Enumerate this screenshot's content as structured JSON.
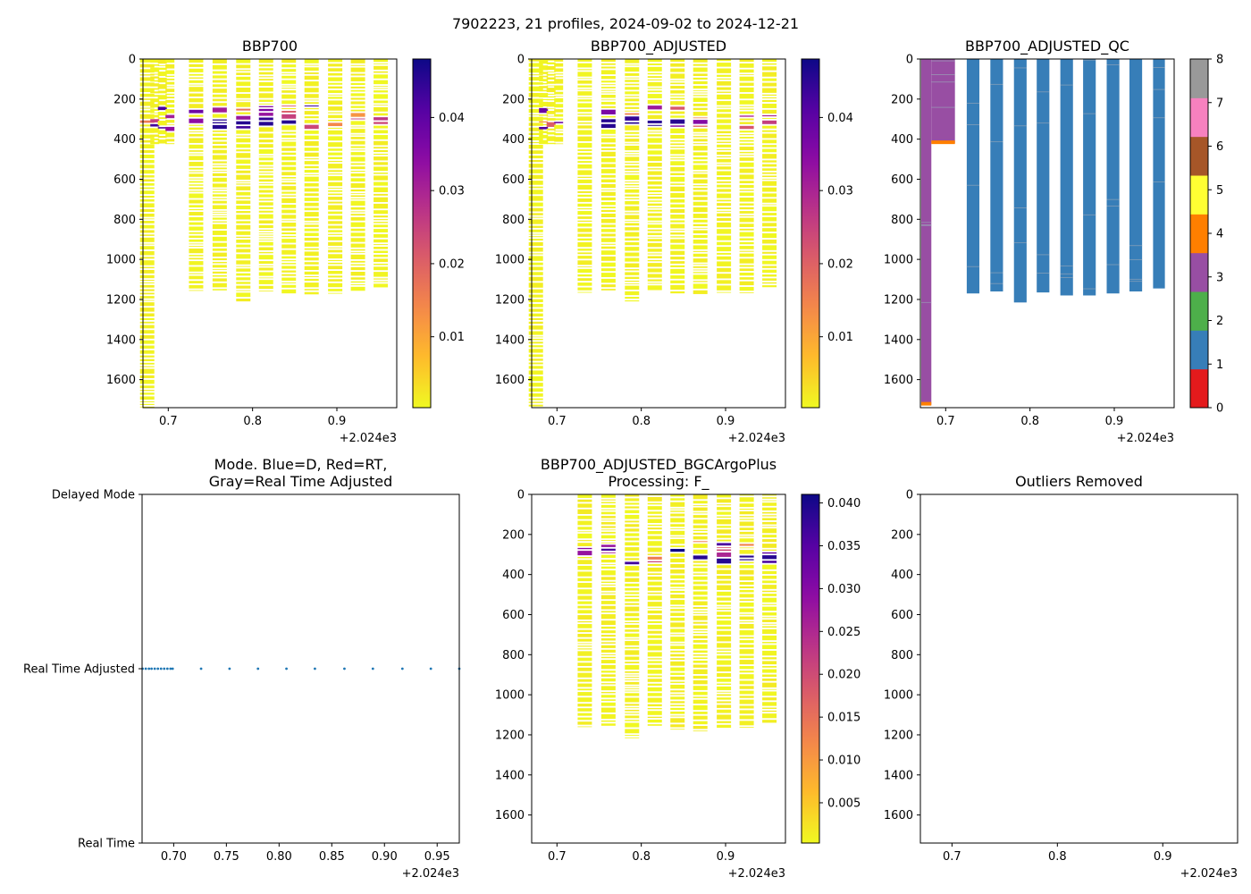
{
  "figure": {
    "suptitle": "7902223, 21 profiles, 2024-09-02 to 2024-12-21",
    "x_offset_label": "+2.024e3"
  },
  "chart_data": [
    {
      "id": "bbp700",
      "type": "heatmap",
      "title": "BBP700",
      "xlim": [
        0.67,
        0.971
      ],
      "ylim": [
        1740,
        0
      ],
      "xticks": [
        "0.7",
        "0.8",
        "0.9"
      ],
      "xtick_values": [
        0.7,
        0.8,
        0.9
      ],
      "yticks": [
        "0",
        "200",
        "400",
        "600",
        "800",
        "1000",
        "1200",
        "1400",
        "1600"
      ],
      "ytick_values": [
        0,
        200,
        400,
        600,
        800,
        1000,
        1200,
        1400,
        1600
      ],
      "profiles_x": [
        0.675,
        0.684,
        0.693,
        0.702,
        0.733,
        0.761,
        0.789,
        0.816,
        0.843,
        0.87,
        0.898,
        0.925,
        0.952
      ],
      "profiles_max_depth": [
        1740,
        430,
        430,
        430,
        1165,
        1160,
        1215,
        1160,
        1175,
        1180,
        1170,
        1165,
        1145
      ],
      "colorbar": {
        "cmap": "plasma_r",
        "range": [
          0.0003,
          0.048
        ],
        "ticks": [
          "0.01",
          "0.02",
          "0.03",
          "0.04"
        ],
        "tick_values": [
          0.01,
          0.02,
          0.03,
          0.04
        ]
      }
    },
    {
      "id": "bbp700-adjusted",
      "type": "heatmap",
      "title": "BBP700_ADJUSTED",
      "xlim": [
        0.67,
        0.971
      ],
      "ylim": [
        1740,
        0
      ],
      "xticks": [
        "0.7",
        "0.8",
        "0.9"
      ],
      "xtick_values": [
        0.7,
        0.8,
        0.9
      ],
      "yticks": [
        "0",
        "200",
        "400",
        "600",
        "800",
        "1000",
        "1200",
        "1400",
        "1600"
      ],
      "ytick_values": [
        0,
        200,
        400,
        600,
        800,
        1000,
        1200,
        1400,
        1600
      ],
      "profiles_x": [
        0.675,
        0.684,
        0.693,
        0.702,
        0.733,
        0.761,
        0.789,
        0.816,
        0.843,
        0.87,
        0.898,
        0.925,
        0.952
      ],
      "profiles_max_depth": [
        1740,
        430,
        430,
        430,
        1165,
        1160,
        1215,
        1160,
        1175,
        1180,
        1170,
        1165,
        1145
      ],
      "colorbar": {
        "cmap": "plasma_r",
        "range": [
          0.0003,
          0.048
        ],
        "ticks": [
          "0.01",
          "0.02",
          "0.03",
          "0.04"
        ],
        "tick_values": [
          0.01,
          0.02,
          0.03,
          0.04
        ]
      }
    },
    {
      "id": "bbp700-adjusted-qc",
      "type": "heatmap",
      "title": "BBP700_ADJUSTED_QC",
      "xlim": [
        0.67,
        0.971
      ],
      "ylim": [
        1740,
        0
      ],
      "xticks": [
        "0.7",
        "0.8",
        "0.9"
      ],
      "xtick_values": [
        0.7,
        0.8,
        0.9
      ],
      "yticks": [
        "0",
        "200",
        "400",
        "600",
        "800",
        "1000",
        "1200",
        "1400",
        "1600"
      ],
      "ytick_values": [
        0,
        200,
        400,
        600,
        800,
        1000,
        1200,
        1400,
        1600
      ],
      "qc_profiles": [
        {
          "x0": 0.671,
          "x1": 0.683,
          "depth": 1725,
          "flag": 3,
          "bottom_flag": 4
        },
        {
          "x0": 0.683,
          "x1": 0.711,
          "depth": 420,
          "flag": 3,
          "bottom_flag": 4
        },
        {
          "x0": 0.725,
          "x1": 0.74,
          "depth": 1170,
          "flag": 1
        },
        {
          "x0": 0.753,
          "x1": 0.768,
          "depth": 1160,
          "flag": 1
        },
        {
          "x0": 0.781,
          "x1": 0.796,
          "depth": 1215,
          "flag": 1
        },
        {
          "x0": 0.808,
          "x1": 0.823,
          "depth": 1165,
          "flag": 1
        },
        {
          "x0": 0.836,
          "x1": 0.851,
          "depth": 1180,
          "flag": 1
        },
        {
          "x0": 0.863,
          "x1": 0.878,
          "depth": 1180,
          "flag": 1
        },
        {
          "x0": 0.891,
          "x1": 0.906,
          "depth": 1170,
          "flag": 1
        },
        {
          "x0": 0.918,
          "x1": 0.933,
          "depth": 1160,
          "flag": 1
        },
        {
          "x0": 0.946,
          "x1": 0.96,
          "depth": 1145,
          "flag": 1
        }
      ],
      "colorbar": {
        "range": [
          0,
          8
        ],
        "ticks": [
          "0",
          "1",
          "2",
          "3",
          "4",
          "5",
          "6",
          "7",
          "8"
        ],
        "tick_values": [
          0,
          1,
          2,
          3,
          4,
          5,
          6,
          7,
          8
        ],
        "colors": [
          "#e41a1c",
          "#377eb8",
          "#4daf4a",
          "#984ea3",
          "#ff7f00",
          "#ffff33",
          "#a65628",
          "#f781bf",
          "#999999"
        ]
      }
    },
    {
      "id": "mode",
      "type": "scatter",
      "title": "Mode. Blue=D, Red=RT,\nGray=Real Time Adjusted",
      "xlim": [
        0.67,
        0.971
      ],
      "ylim": [
        0,
        2
      ],
      "xticks": [
        "0.70",
        "0.75",
        "0.80",
        "0.85",
        "0.90",
        "0.95"
      ],
      "xtick_values": [
        0.7,
        0.75,
        0.8,
        0.85,
        0.9,
        0.95
      ],
      "yticks": [
        "Real Time",
        "Real Time Adjusted",
        "Delayed Mode"
      ],
      "ytick_values": [
        0,
        1,
        2
      ],
      "x": [
        0.6705,
        0.6735,
        0.6765,
        0.679,
        0.682,
        0.685,
        0.688,
        0.691,
        0.694,
        0.697,
        0.699,
        0.726,
        0.753,
        0.78,
        0.807,
        0.834,
        0.862,
        0.889,
        0.917,
        0.944,
        0.971
      ],
      "y": [
        1,
        1,
        1,
        1,
        1,
        1,
        1,
        1,
        1,
        1,
        1,
        1,
        1,
        1,
        1,
        1,
        1,
        1,
        1,
        1,
        1
      ],
      "color": "#1f77b4"
    },
    {
      "id": "bbp700-bgcargoplus",
      "type": "heatmap",
      "title": "BBP700_ADJUSTED_BGCArgoPlus\nProcessing: F_",
      "xlim": [
        0.67,
        0.971
      ],
      "ylim": [
        1740,
        0
      ],
      "xticks": [
        "0.7",
        "0.8",
        "0.9"
      ],
      "xtick_values": [
        0.7,
        0.8,
        0.9
      ],
      "yticks": [
        "0",
        "200",
        "400",
        "600",
        "800",
        "1000",
        "1200",
        "1400",
        "1600"
      ],
      "ytick_values": [
        0,
        200,
        400,
        600,
        800,
        1000,
        1200,
        1400,
        1600
      ],
      "profiles_x": [
        0.733,
        0.761,
        0.789,
        0.816,
        0.843,
        0.87,
        0.898,
        0.925,
        0.952
      ],
      "profiles_max_depth": [
        1165,
        1160,
        1215,
        1160,
        1175,
        1180,
        1170,
        1165,
        1145
      ],
      "colorbar": {
        "cmap": "plasma_r",
        "range": [
          0.0003,
          0.041
        ],
        "ticks": [
          "0.005",
          "0.010",
          "0.015",
          "0.020",
          "0.025",
          "0.030",
          "0.035",
          "0.040"
        ],
        "tick_values": [
          0.005,
          0.01,
          0.015,
          0.02,
          0.025,
          0.03,
          0.035,
          0.04
        ]
      }
    },
    {
      "id": "outliers",
      "type": "scatter",
      "title": "Outliers Removed",
      "xlim": [
        0.67,
        0.971
      ],
      "ylim": [
        1740,
        0
      ],
      "xticks": [
        "0.7",
        "0.8",
        "0.9"
      ],
      "xtick_values": [
        0.7,
        0.8,
        0.9
      ],
      "yticks": [
        "0",
        "200",
        "400",
        "600",
        "800",
        "1000",
        "1200",
        "1400",
        "1600"
      ],
      "ytick_values": [
        0,
        200,
        400,
        600,
        800,
        1000,
        1200,
        1400,
        1600
      ],
      "x": [],
      "y": []
    }
  ]
}
